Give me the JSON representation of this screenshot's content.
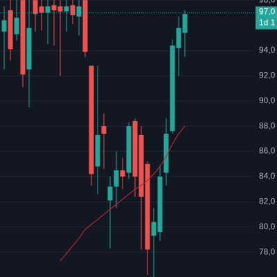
{
  "chart_data": {
    "type": "candlestick",
    "categories": [
      null,
      null,
      null,
      null,
      null,
      null,
      null,
      null,
      null,
      null,
      null,
      null,
      null,
      null,
      null,
      null,
      null,
      null,
      null,
      null,
      null,
      null,
      null,
      null,
      null,
      null,
      null,
      null,
      null,
      null
    ],
    "open": [
      95.5,
      97.2,
      95.3,
      98.0,
      92.5,
      98.0,
      97.5,
      97.0,
      97.6,
      97.5,
      97.1,
      97.6,
      96.7,
      98.0,
      92.8,
      84.8,
      88.0,
      82.1,
      83.2,
      84.5,
      84.3,
      88.4,
      87.3,
      85.0,
      79.3,
      79.6,
      84.3,
      87.6,
      94.2,
      95.4
    ],
    "high": [
      97.5,
      98.0,
      98.0,
      98.0,
      98.0,
      98.0,
      98.0,
      98.0,
      98.0,
      98.0,
      98.0,
      98.0,
      98.0,
      98.0,
      92.8,
      92.8,
      89.0,
      84.0,
      86.0,
      85.5,
      88.3,
      88.6,
      88.0,
      85.2,
      81.5,
      84.9,
      88.6,
      94.9,
      96.7,
      97.2
    ],
    "low": [
      92.5,
      93.2,
      94.8,
      91.1,
      89.5,
      95.5,
      95.6,
      94.5,
      94.4,
      92.0,
      95.5,
      96.1,
      95.2,
      93.5,
      83.3,
      82.6,
      84.6,
      78.3,
      81.5,
      83.0,
      83.8,
      82.4,
      78.2,
      76.2,
      76.0,
      78.9,
      83.3,
      87.4,
      92.0,
      93.5
    ],
    "close": [
      96.4,
      94.1,
      96.6,
      92.1,
      95.8,
      96.9,
      97.0,
      97.5,
      97.2,
      97.1,
      97.5,
      96.8,
      97.5,
      93.9,
      84.2,
      87.3,
      87.4,
      83.2,
      84.5,
      84.0,
      88.0,
      84.0,
      82.4,
      78.2,
      80.4,
      84.0,
      87.4,
      94.4,
      95.8,
      96.9
    ],
    "up_color": "#26a69a",
    "down_color": "#ef5350",
    "ma": {
      "color": "#b22833",
      "values": [
        null,
        null,
        null,
        null,
        null,
        null,
        null,
        null,
        null,
        77.3,
        77.9,
        78.5,
        79.1,
        79.8,
        80.2,
        80.6,
        81.0,
        81.4,
        81.8,
        82.2,
        82.6,
        83.0,
        83.3,
        83.7,
        84.2,
        84.8,
        85.6,
        86.6,
        87.4,
        88.0
      ]
    },
    "ylim": [
      76.03,
      98.01
    ],
    "yticks": [
      {
        "value": 98,
        "label": "98,0"
      },
      {
        "value": 94,
        "label": "94,0"
      },
      {
        "value": 92,
        "label": "92,0"
      },
      {
        "value": 90,
        "label": "90,0"
      },
      {
        "value": 88,
        "label": "88,0"
      },
      {
        "value": 86,
        "label": "86,0"
      },
      {
        "value": 84,
        "label": "84,0"
      },
      {
        "value": 82,
        "label": "82,0"
      },
      {
        "value": 80,
        "label": "80,0"
      },
      {
        "value": 78,
        "label": "78,0"
      }
    ],
    "grid": true,
    "last_price": {
      "value": 97,
      "label": "97,0"
    },
    "countdown": "1d 1"
  }
}
